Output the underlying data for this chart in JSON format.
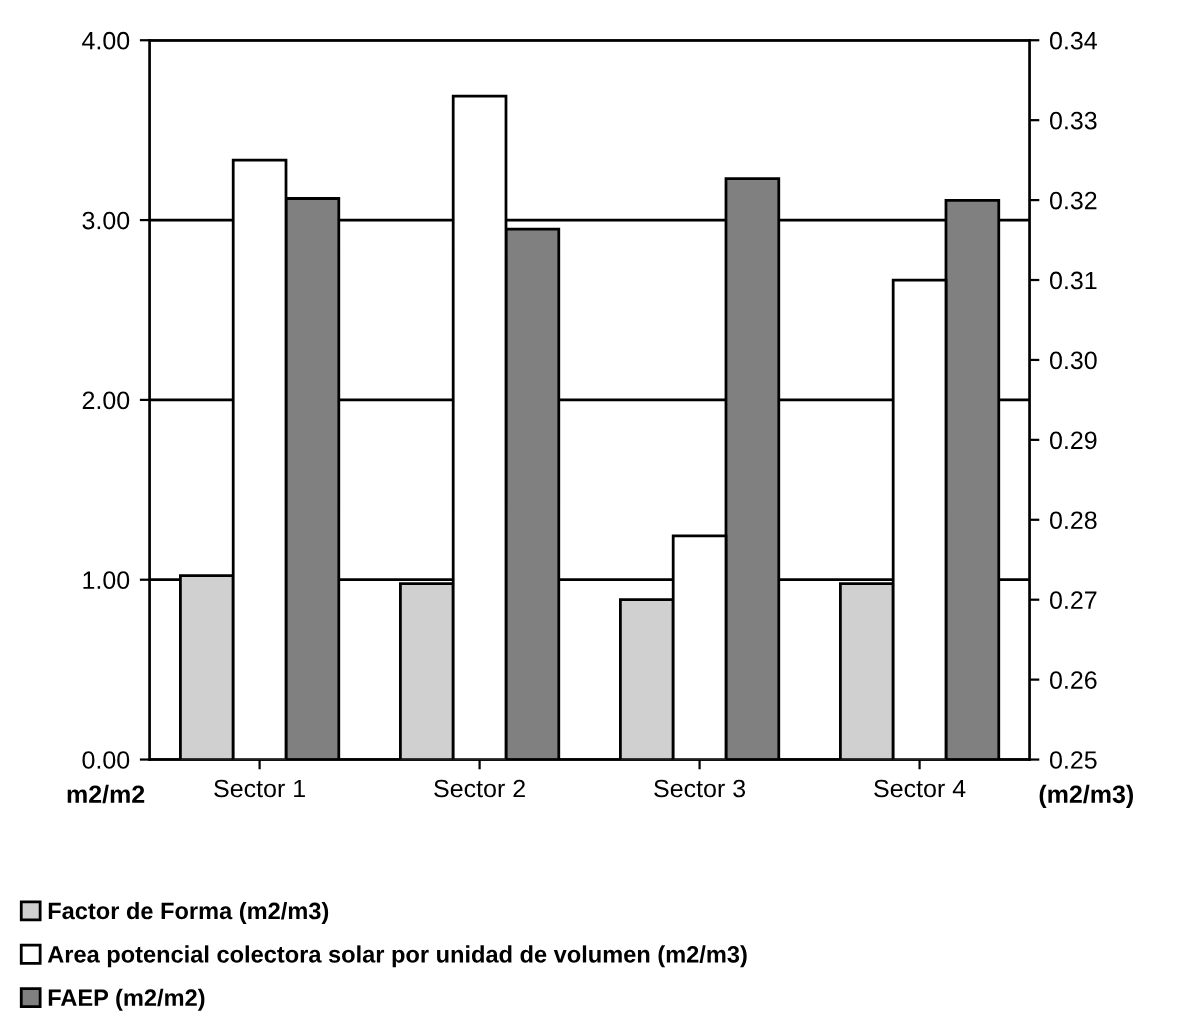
{
  "chart_data": {
    "type": "bar",
    "categories": [
      "Sector 1",
      "Sector 2",
      "Sector 3",
      "Sector 4"
    ],
    "series": [
      {
        "name": "Factor de Forma (m2/m3)",
        "color": "#d0d0d0",
        "axis": "y2",
        "values": [
          0.273,
          0.272,
          0.27,
          0.272
        ]
      },
      {
        "name": "Area potencial colectora solar por unidad de volumen (m2/m3)",
        "color": "#ffffff",
        "axis": "y2",
        "values": [
          0.325,
          0.333,
          0.278,
          0.31
        ]
      },
      {
        "name": "FAEP (m2/m2)",
        "color": "#808080",
        "values": [
          3.12,
          2.95,
          3.23,
          3.11
        ]
      }
    ],
    "ylabel": "m2/m2",
    "y2label": "(m2/m3)",
    "ylim": [
      0,
      4
    ],
    "yticks": [
      {
        "value": 0,
        "label": "0.00"
      },
      {
        "value": 1,
        "label": "1.00"
      },
      {
        "value": 2,
        "label": "2.00"
      },
      {
        "value": 3,
        "label": "3.00"
      },
      {
        "value": 4,
        "label": "4.00"
      }
    ],
    "y2lim": [
      0.25,
      0.34
    ],
    "y2ticks": [
      0.25,
      0.26,
      0.27,
      0.28,
      0.29,
      {
        "value": 0.3,
        "label": "0.30"
      },
      0.31,
      0.32,
      0.33,
      0.34
    ],
    "grid": "y",
    "legend": "bottom"
  }
}
